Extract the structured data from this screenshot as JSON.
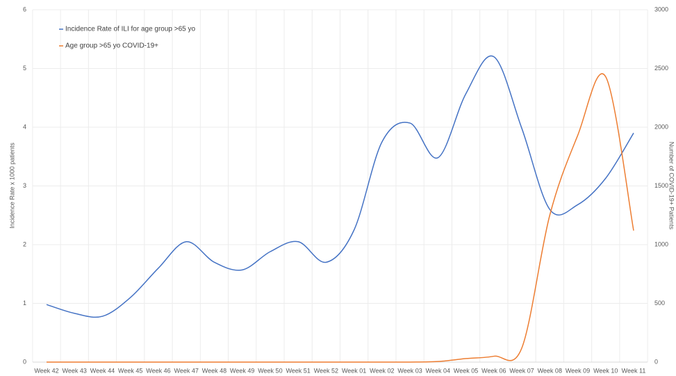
{
  "chart_data": {
    "type": "line",
    "categories": [
      "Week 42",
      "Week 43",
      "Week 44",
      "Week 45",
      "Week 46",
      "Week 47",
      "Week 48",
      "Week 49",
      "Week 50",
      "Week 51",
      "Week 52",
      "Week 01",
      "Week 02",
      "Week 03",
      "Week 04",
      "Week 05",
      "Week 06",
      "Week 07",
      "Week 08",
      "Week 09",
      "Week 10",
      "Week 11"
    ],
    "series": [
      {
        "name": "Incidence Rate of ILI for age group >65 yo",
        "color": "#4472c4",
        "values": [
          0.98,
          0.83,
          0.78,
          1.1,
          1.6,
          2.05,
          1.7,
          1.57,
          1.88,
          2.05,
          1.7,
          2.25,
          3.75,
          4.07,
          3.48,
          4.57,
          5.2,
          3.98,
          2.6,
          2.68,
          3.13,
          3.9
        ]
      },
      {
        "name": "Age group >65 yo COVID-19+",
        "color": "#ed7d31",
        "axis": "y2",
        "values": [
          0,
          0,
          0,
          0,
          0,
          0,
          0,
          0,
          0,
          0,
          0,
          0,
          0,
          0,
          5,
          30,
          50,
          120,
          1250,
          1930,
          2430,
          1120
        ]
      }
    ],
    "ylabel": "Incidence Rate x 1000 patients",
    "y2label": "Number of COVID-19+ Patients",
    "ylim": [
      0,
      6
    ],
    "yticks": [
      0,
      1,
      2,
      3,
      4,
      5,
      6
    ],
    "y2lim": [
      0,
      3000
    ],
    "y2ticks": [
      0,
      500,
      1000,
      1500,
      2000,
      2500,
      3000
    ],
    "grid": true,
    "legend": "top-left"
  }
}
